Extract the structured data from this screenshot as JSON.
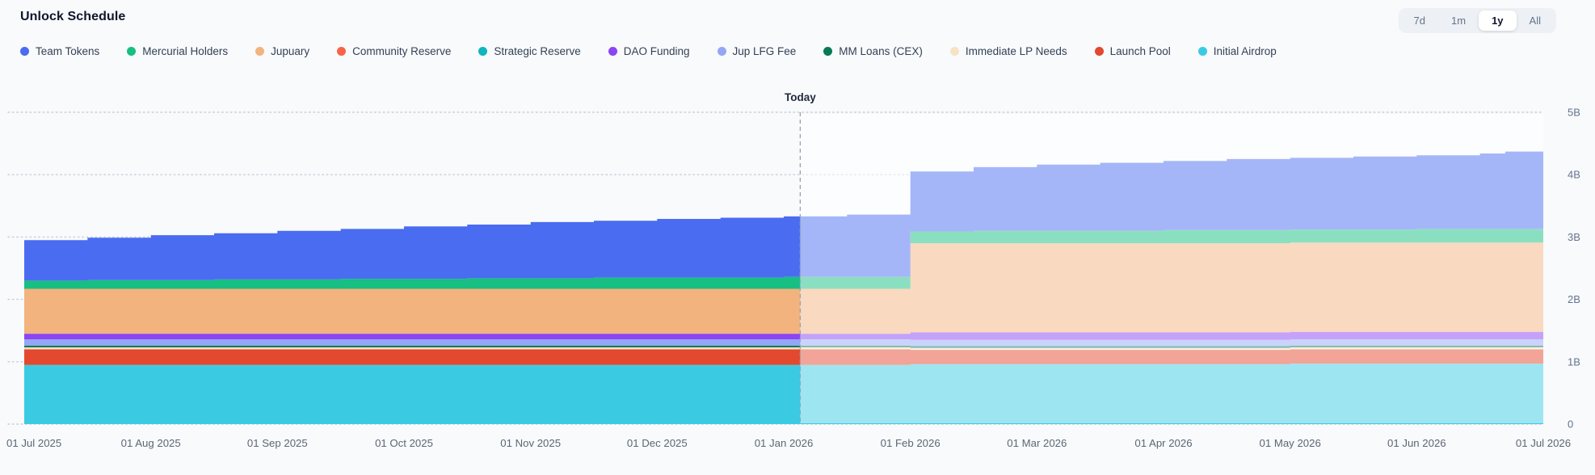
{
  "header": {
    "title": "Unlock Schedule"
  },
  "range_selector": {
    "options": [
      "7d",
      "1m",
      "1y",
      "All"
    ],
    "active": "1y"
  },
  "chart_data": {
    "type": "area",
    "stacked": true,
    "step": true,
    "title": "Unlock Schedule",
    "unit": "tokens (billions)",
    "x_domain_months": [
      0,
      12
    ],
    "x_tick_labels": [
      "01 Jul 2025",
      "01 Aug 2025",
      "01 Sep 2025",
      "01 Oct 2025",
      "01 Nov 2025",
      "01 Dec 2025",
      "01 Jan 2026",
      "01 Feb 2026",
      "01 Mar 2026",
      "01 Apr 2026",
      "01 May 2026",
      "01 Jun 2026",
      "01 Jul 2026"
    ],
    "x_tick_months": [
      0,
      1,
      2,
      3,
      4,
      5,
      6,
      7,
      8,
      9,
      10,
      11,
      12
    ],
    "y_domain": [
      0,
      5
    ],
    "y_ticks": [
      {
        "value": 0,
        "label": "0"
      },
      {
        "value": 1,
        "label": "1B"
      },
      {
        "value": 2,
        "label": "2B"
      },
      {
        "value": 3,
        "label": "3B"
      },
      {
        "value": 4,
        "label": "4B"
      },
      {
        "value": 5,
        "label": "5B"
      }
    ],
    "today": {
      "label": "Today",
      "month": 6.13
    },
    "breakpoint_months": [
      0,
      0.5,
      1,
      1.5,
      2,
      2.5,
      3,
      3.5,
      4,
      4.5,
      5,
      5.5,
      6,
      6.5,
      7,
      7.5,
      8,
      8.5,
      9,
      9.5,
      10,
      10.5,
      11,
      11.5,
      11.7
    ],
    "series": [
      {
        "name": "Team Tokens",
        "color": "#4a6cf0",
        "values": [
          0.65,
          0.68,
          0.72,
          0.74,
          0.78,
          0.8,
          0.84,
          0.86,
          0.9,
          0.91,
          0.94,
          0.96,
          0.97,
          1.0,
          0.96,
          1.02,
          1.06,
          1.09,
          1.11,
          1.14,
          1.15,
          1.17,
          1.18,
          1.21,
          1.24
        ]
      },
      {
        "name": "Mercurial Holders",
        "color": "#17bf82",
        "values": [
          0.13,
          0.14,
          0.14,
          0.15,
          0.15,
          0.16,
          0.16,
          0.17,
          0.17,
          0.18,
          0.18,
          0.18,
          0.19,
          0.19,
          0.19,
          0.2,
          0.2,
          0.2,
          0.21,
          0.21,
          0.21,
          0.21,
          0.22,
          0.22,
          0.22
        ]
      },
      {
        "name": "Jupuary",
        "color": "#f3b37e",
        "values": [
          0.72,
          0.72,
          0.72,
          0.72,
          0.72,
          0.72,
          0.72,
          0.72,
          0.72,
          0.72,
          0.72,
          0.72,
          0.72,
          0.72,
          1.43,
          1.43,
          1.43,
          1.43,
          1.43,
          1.43,
          1.43,
          1.43,
          1.43,
          1.43,
          1.43
        ]
      },
      {
        "name": "Community Reserve",
        "color": "#f96449",
        "values": [
          0,
          0,
          0,
          0,
          0,
          0,
          0,
          0,
          0,
          0,
          0,
          0,
          0,
          0,
          0,
          0,
          0,
          0,
          0,
          0,
          0,
          0,
          0,
          0,
          0
        ]
      },
      {
        "name": "Strategic Reserve",
        "color": "#10b5bd",
        "values": [
          0,
          0,
          0,
          0,
          0,
          0,
          0,
          0,
          0,
          0,
          0,
          0,
          0,
          0,
          0,
          0,
          0,
          0,
          0,
          0,
          0,
          0,
          0,
          0,
          0
        ]
      },
      {
        "name": "DAO Funding",
        "color": "#8b45f2",
        "values": [
          0.09,
          0.09,
          0.09,
          0.09,
          0.09,
          0.09,
          0.09,
          0.09,
          0.09,
          0.09,
          0.09,
          0.09,
          0.09,
          0.09,
          0.12,
          0.12,
          0.12,
          0.12,
          0.12,
          0.12,
          0.12,
          0.12,
          0.12,
          0.12,
          0.12
        ]
      },
      {
        "name": "Jup LFG Fee",
        "color": "#94a6f6",
        "values": [
          0.1,
          0.1,
          0.1,
          0.1,
          0.1,
          0.1,
          0.1,
          0.1,
          0.1,
          0.1,
          0.1,
          0.1,
          0.1,
          0.1,
          0.1,
          0.1,
          0.1,
          0.1,
          0.1,
          0.1,
          0.1,
          0.1,
          0.1,
          0.1,
          0.1
        ]
      },
      {
        "name": "MM Loans (CEX)",
        "color": "#067a57",
        "values": [
          0.03,
          0.03,
          0.03,
          0.03,
          0.03,
          0.03,
          0.03,
          0.03,
          0.03,
          0.03,
          0.03,
          0.03,
          0.03,
          0.03,
          0.03,
          0.03,
          0.03,
          0.03,
          0.03,
          0.03,
          0.03,
          0.03,
          0.03,
          0.03,
          0.03
        ]
      },
      {
        "name": "Immediate LP Needs",
        "color": "#f8e2c6",
        "values": [
          0.03,
          0.03,
          0.03,
          0.03,
          0.03,
          0.03,
          0.03,
          0.03,
          0.03,
          0.03,
          0.03,
          0.03,
          0.03,
          0.03,
          0.03,
          0.03,
          0.03,
          0.03,
          0.03,
          0.03,
          0.03,
          0.03,
          0.03,
          0.03,
          0.03
        ]
      },
      {
        "name": "Launch Pool",
        "color": "#e2492e",
        "values": [
          0.25,
          0.25,
          0.25,
          0.25,
          0.25,
          0.25,
          0.25,
          0.25,
          0.25,
          0.25,
          0.25,
          0.25,
          0.25,
          0.25,
          0.23,
          0.23,
          0.23,
          0.23,
          0.23,
          0.23,
          0.23,
          0.23,
          0.23,
          0.23,
          0.23
        ]
      },
      {
        "name": "Initial Airdrop",
        "color": "#3acbe2",
        "values": [
          0.95,
          0.95,
          0.95,
          0.95,
          0.95,
          0.95,
          0.95,
          0.95,
          0.95,
          0.95,
          0.95,
          0.95,
          0.95,
          0.95,
          0.96,
          0.96,
          0.96,
          0.96,
          0.96,
          0.96,
          0.97,
          0.97,
          0.97,
          0.97,
          0.97
        ]
      }
    ]
  }
}
